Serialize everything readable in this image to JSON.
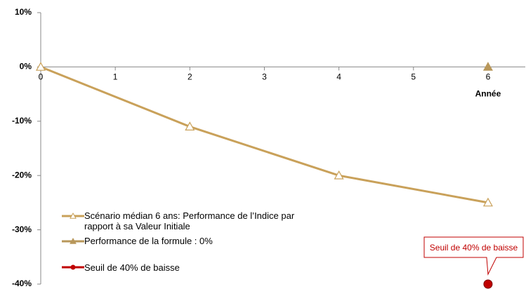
{
  "chart_data": {
    "type": "line",
    "xlabel": "Année",
    "xlim": [
      0,
      6.5
    ],
    "xticks": [
      0,
      1,
      2,
      3,
      4,
      5,
      6
    ],
    "ylim": [
      -40,
      10
    ],
    "yticks": [
      {
        "value": -40,
        "label": "-40%"
      },
      {
        "value": -30,
        "label": "-30%"
      },
      {
        "value": -20,
        "label": "-20%"
      },
      {
        "value": -10,
        "label": "-10%"
      },
      {
        "value": 0,
        "label": "0%"
      },
      {
        "value": 10,
        "label": "10%"
      }
    ],
    "grid": false,
    "legend": "lower left",
    "series": [
      {
        "name": "Scénario médian 6 ans: Performance de l’Indice par rapport à sa Valeur Initiale",
        "color": "#c9a15a",
        "marker": "open-triangle",
        "x": [
          0,
          2,
          4,
          6
        ],
        "values": [
          0,
          -11,
          -20,
          -25
        ]
      },
      {
        "name": "Performance de la formule : 0%",
        "color": "#b8975a",
        "marker": "filled-triangle",
        "x": [
          6
        ],
        "values": [
          0
        ]
      },
      {
        "name": "Seuil de 40% de baisse",
        "color": "#c00000",
        "marker": "circle",
        "x": [
          6
        ],
        "values": [
          -40
        ]
      }
    ],
    "annotations": [
      {
        "text": "Seuil de 40% de baisse",
        "color": "#c00000"
      }
    ]
  }
}
